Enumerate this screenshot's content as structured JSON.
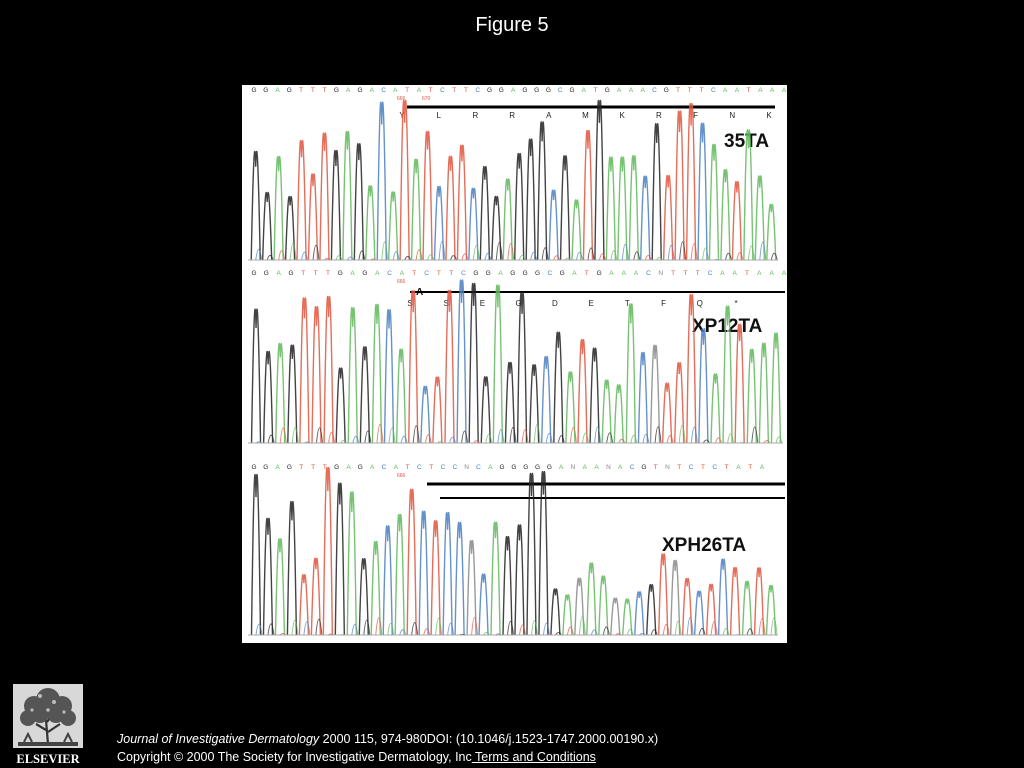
{
  "slide": {
    "title": "Figure 5"
  },
  "figure": {
    "panels": [
      {
        "label": "35TA",
        "bases": "GGAGTTTGAGACATATCTTCGGAGGGCGATGAAACGTTTCAATAAA",
        "marks": [
          "666",
          "670"
        ],
        "aminoacids": [
          "Y",
          "L",
          "R",
          "R",
          "A",
          "M",
          "K",
          "R",
          "F",
          "N",
          "K"
        ]
      },
      {
        "label": "XP12TA",
        "bases": "GGAGTTTGAGACATCTTCGGAGGGCGATGAAACNTTTCAATAAA",
        "marks": [
          "666"
        ],
        "insert": "A",
        "aminoacids": [
          "S",
          "S",
          "E",
          "G",
          "D",
          "E",
          "T",
          "F",
          "Q",
          "*"
        ]
      },
      {
        "label": "XPH26TA",
        "bases": "GGAGTTTGAGACATCTCCNCAGGGGGANAANACGTNTCTCTATA",
        "marks": [
          "666"
        ],
        "aminoacids": []
      }
    ],
    "base_colors": {
      "A": "#5fb85a",
      "C": "#4a7fc0",
      "G": "#222222",
      "T": "#e0533c",
      "N": "#888888"
    }
  },
  "logo": {
    "text": "ELSEVIER"
  },
  "citation": {
    "journal": "Journal of Investigative Dermatology",
    "details": " 2000 115, 974-980DOI: (10.1046/j.1523-1747.2000.00190.x)",
    "copyright": "Copyright © 2000 The Society for Investigative Dermatology, Inc",
    "terms_link": " Terms and Conditions"
  }
}
